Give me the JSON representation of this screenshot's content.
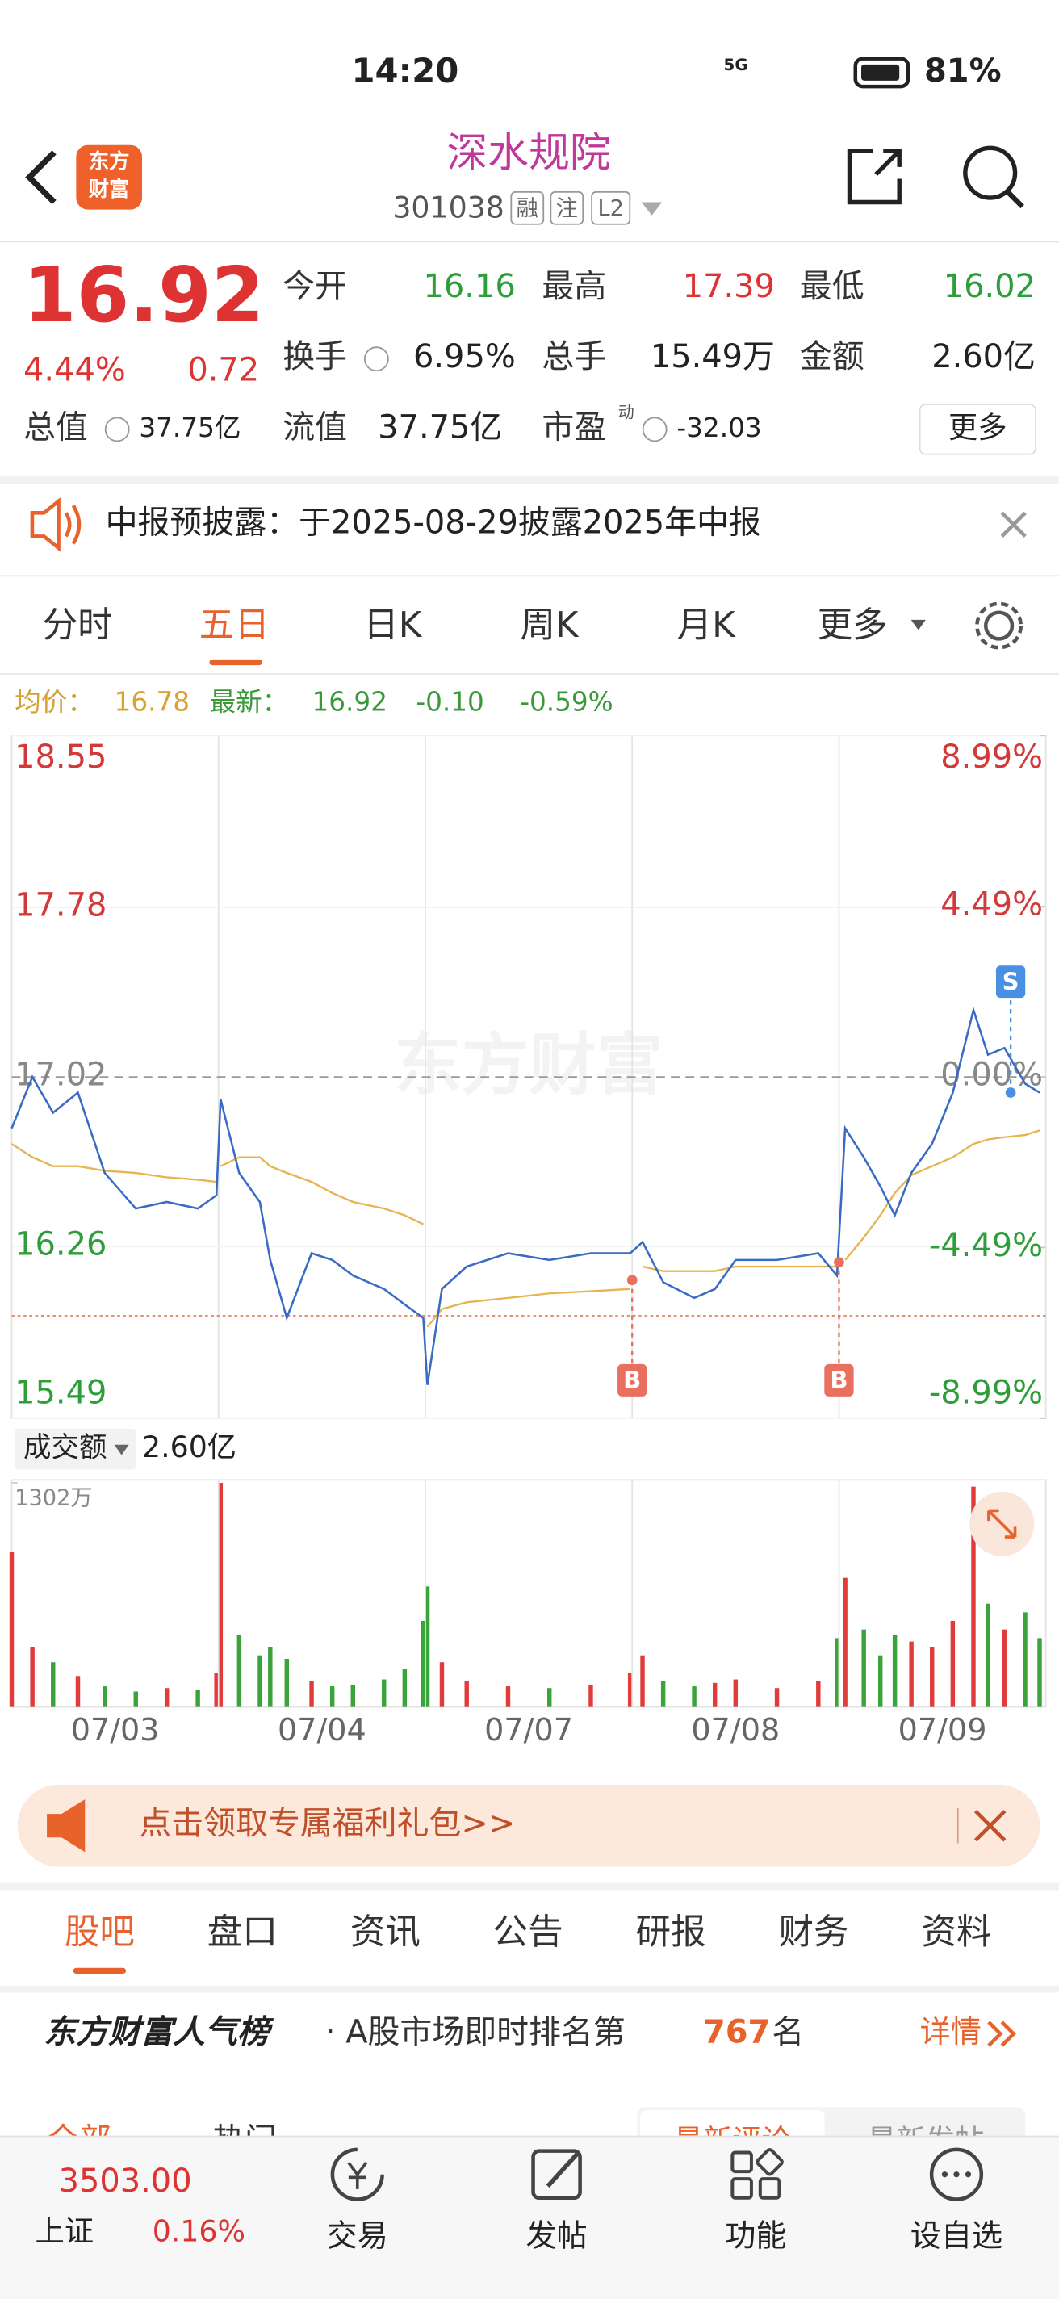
{
  "status_bar": {
    "time": "14:20",
    "network": "5G",
    "battery": "81%"
  },
  "header": {
    "logo_lines": [
      "东方",
      "财富"
    ],
    "title": "深水规院",
    "code": "301038",
    "tags": [
      "融",
      "注",
      "L2"
    ]
  },
  "quote": {
    "price": "16.92",
    "change_pct": "4.44%",
    "change": "0.72",
    "fields": [
      {
        "label": "今开",
        "value": "16.16"
      },
      {
        "label": "最高",
        "value": "17.39"
      },
      {
        "label": "最低",
        "value": "16.02"
      },
      {
        "label": "换手",
        "value": "6.95%"
      },
      {
        "label": "总手",
        "value": "15.49万"
      },
      {
        "label": "金额",
        "value": "2.60亿"
      }
    ],
    "stats": [
      {
        "label": "总值",
        "value": "37.75亿"
      },
      {
        "label": "流值",
        "value": "37.75亿"
      },
      {
        "label": "市盈",
        "value": "-32.03"
      }
    ],
    "pe_tag": "动",
    "more": "更多"
  },
  "notice": "中报预披露：于2025-08-29披露2025年中报",
  "tabs": [
    "分时",
    "五日",
    "日K",
    "周K",
    "月K",
    "更多"
  ],
  "info": {
    "avg_label": "均价：",
    "avg": "16.78",
    "latest_label": "最新：",
    "latest": "16.92",
    "change": "-0.10",
    "change_pct": "-0.59%"
  },
  "chart_data": {
    "type": "line",
    "watermark": "东方财富",
    "categories": [
      "07/03",
      "07/04",
      "07/07",
      "07/08",
      "07/09"
    ],
    "xlim": [
      0,
      5
    ],
    "x": [
      0,
      0.1,
      0.2,
      0.32,
      0.45,
      0.6,
      0.75,
      0.9,
      0.99,
      1.01,
      1.1,
      1.2,
      1.25,
      1.33,
      1.45,
      1.55,
      1.65,
      1.8,
      1.9,
      1.99,
      2.01,
      2.08,
      2.2,
      2.4,
      2.6,
      2.8,
      2.99,
      3.05,
      3.15,
      3.3,
      3.4,
      3.5,
      3.7,
      3.9,
      3.99,
      4.03,
      4.12,
      4.2,
      4.27,
      4.35,
      4.45,
      4.55,
      4.65,
      4.72,
      4.8,
      4.9,
      4.97
    ],
    "series": [
      {
        "color": "#3a6bc4",
        "values": [
          16.79,
          17.02,
          16.86,
          16.95,
          16.59,
          16.43,
          16.46,
          16.43,
          16.49,
          16.92,
          16.59,
          16.46,
          16.2,
          15.94,
          16.23,
          16.2,
          16.13,
          16.07,
          16.0,
          15.94,
          15.64,
          16.07,
          16.17,
          16.23,
          16.2,
          16.23,
          16.23,
          16.28,
          16.1,
          16.03,
          16.07,
          16.2,
          16.2,
          16.23,
          16.13,
          16.79,
          16.66,
          16.53,
          16.4,
          16.59,
          16.72,
          16.95,
          17.32,
          17.12,
          17.15,
          16.99,
          16.95
        ]
      },
      {
        "color": "#e6b450",
        "values": [
          16.72,
          16.66,
          16.62,
          16.62,
          16.6,
          16.59,
          16.57,
          16.56,
          16.55,
          16.62,
          16.66,
          16.66,
          16.62,
          16.59,
          16.55,
          16.5,
          16.46,
          16.43,
          16.4,
          16.36,
          15.9,
          15.98,
          16.01,
          16.03,
          16.05,
          16.06,
          16.07,
          16.17,
          16.15,
          16.15,
          16.15,
          16.17,
          16.17,
          16.17,
          16.17,
          16.2,
          16.3,
          16.4,
          16.5,
          16.58,
          16.62,
          16.66,
          16.72,
          16.74,
          16.75,
          16.76,
          16.78
        ]
      }
    ],
    "ylim": [
      15.49,
      18.55
    ],
    "yticks": [
      18.55,
      17.78,
      17.02,
      16.26,
      15.49
    ],
    "y2lim": [
      -8.99,
      8.99
    ],
    "y2ticks": [
      {
        "value": 8.99,
        "label": "8.99%"
      },
      {
        "value": 4.49,
        "label": "4.49%"
      },
      {
        "value": 0,
        "label": "0.00%"
      },
      {
        "value": -4.49,
        "label": "-4.49%"
      },
      {
        "value": -8.99,
        "label": "-8.99%"
      }
    ],
    "reference_line": 15.95,
    "trades": [
      {
        "label": "B",
        "x": 3.0,
        "price": 16.11
      },
      {
        "label": "B",
        "x": 4.0,
        "price": 16.19
      },
      {
        "label": "S",
        "x": 4.83,
        "price": 16.95
      }
    ],
    "volume": {
      "title": "成交额",
      "total": "2.60亿",
      "ylim": [
        0,
        1302
      ],
      "yticks": [
        {
          "value": 1302,
          "label": "1302万"
        }
      ],
      "up_color": "#e03c3c",
      "down_color": "#3aa33a",
      "values": [
        900,
        350,
        260,
        180,
        120,
        90,
        110,
        100,
        200,
        1302,
        420,
        300,
        350,
        280,
        150,
        120,
        130,
        160,
        220,
        500,
        700,
        260,
        150,
        120,
        110,
        130,
        200,
        300,
        150,
        120,
        140,
        160,
        110,
        150,
        400,
        750,
        450,
        300,
        420,
        380,
        350,
        500,
        1280,
        600,
        450,
        550,
        400
      ]
    }
  },
  "banner": "点击领取专属福利礼包>>",
  "section_tabs": [
    "股吧",
    "盘口",
    "资讯",
    "公告",
    "研报",
    "财务",
    "资料"
  ],
  "popularity": {
    "title": "东方财富人气榜",
    "text": "· A股市场即时排名第",
    "rank": "767",
    "suffix": "名",
    "link": "详情"
  },
  "feed_tabs": [
    "全部",
    "热门"
  ],
  "feed_sort": [
    "最新评论",
    "最新发帖"
  ],
  "bottom_bar": {
    "index_value": "3503.00",
    "index_name": "上证",
    "index_change": "0.16%",
    "nav": [
      "交易",
      "发帖",
      "功能",
      "设自选"
    ]
  }
}
